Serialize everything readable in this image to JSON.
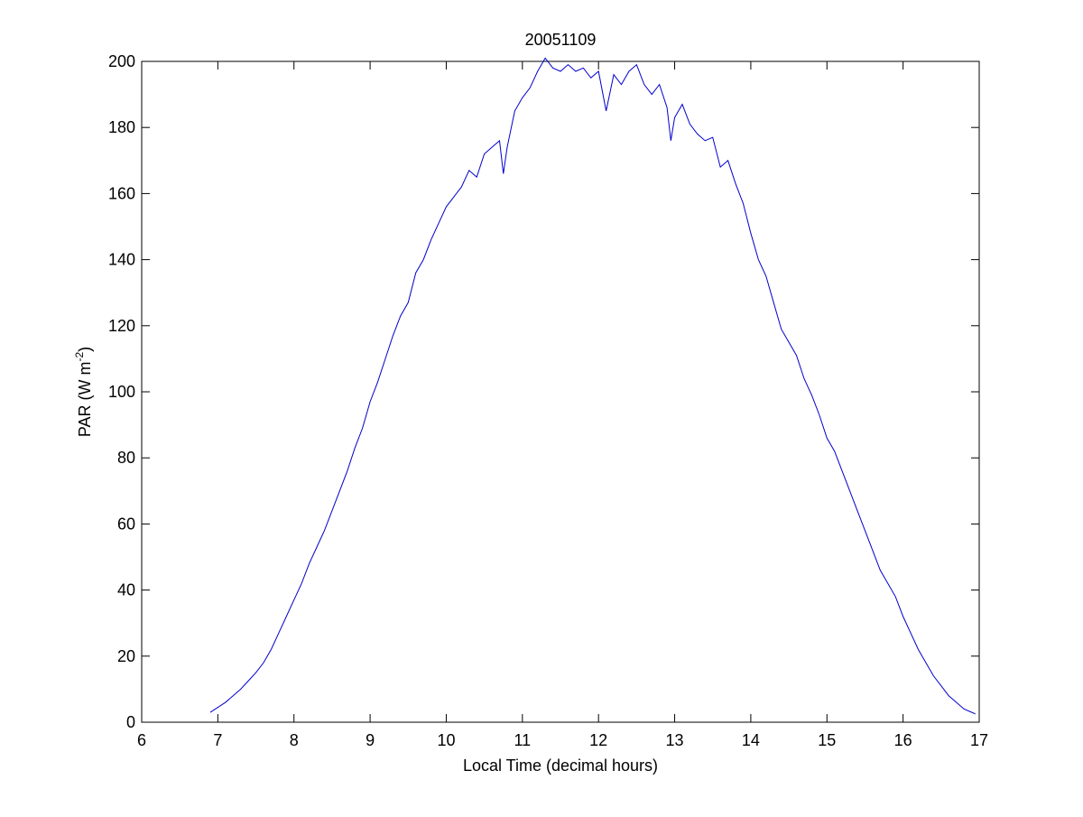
{
  "chart_data": {
    "type": "line",
    "title": "20051109",
    "xlabel": "Local Time (decimal hours)",
    "ylabel": {
      "text": "PAR (W m",
      "superscript": "-2",
      "suffix": ")"
    },
    "xlim": [
      6,
      17
    ],
    "xticks": [
      6,
      7,
      8,
      9,
      10,
      11,
      12,
      13,
      14,
      15,
      16,
      17
    ],
    "ylim": [
      0,
      200
    ],
    "yticks": [
      0,
      20,
      40,
      60,
      80,
      100,
      120,
      140,
      160,
      180,
      200
    ],
    "grid": false,
    "x": [
      6.9,
      7.0,
      7.1,
      7.2,
      7.3,
      7.4,
      7.5,
      7.6,
      7.7,
      7.8,
      7.9,
      8.0,
      8.1,
      8.2,
      8.3,
      8.4,
      8.5,
      8.6,
      8.7,
      8.8,
      8.9,
      9.0,
      9.1,
      9.2,
      9.3,
      9.4,
      9.5,
      9.6,
      9.7,
      9.8,
      9.9,
      10.0,
      10.1,
      10.2,
      10.3,
      10.4,
      10.5,
      10.6,
      10.7,
      10.75,
      10.8,
      10.9,
      11.0,
      11.1,
      11.2,
      11.3,
      11.4,
      11.5,
      11.6,
      11.7,
      11.8,
      11.9,
      12.0,
      12.1,
      12.2,
      12.3,
      12.4,
      12.5,
      12.6,
      12.7,
      12.8,
      12.9,
      12.95,
      13.0,
      13.1,
      13.2,
      13.3,
      13.4,
      13.5,
      13.6,
      13.7,
      13.8,
      13.9,
      14.0,
      14.1,
      14.2,
      14.3,
      14.4,
      14.5,
      14.6,
      14.7,
      14.8,
      14.9,
      15.0,
      15.1,
      15.2,
      15.3,
      15.4,
      15.5,
      15.6,
      15.7,
      15.8,
      15.9,
      16.0,
      16.1,
      16.2,
      16.3,
      16.4,
      16.5,
      16.6,
      16.7,
      16.8,
      16.9,
      16.95
    ],
    "series": [
      {
        "color": "#0000cc",
        "values": [
          3,
          4.5,
          6,
          8,
          10,
          12.5,
          15,
          18,
          22,
          27,
          32,
          37,
          42,
          48,
          53,
          58,
          64,
          70,
          76,
          83,
          89,
          97,
          103,
          110,
          117,
          123,
          127,
          136,
          140,
          146,
          151,
          156,
          159,
          162,
          167,
          165,
          172,
          174,
          176,
          166,
          174,
          185,
          189,
          192,
          197,
          201,
          198,
          197,
          199,
          197,
          198,
          195,
          197,
          185,
          196,
          193,
          197,
          199,
          193,
          190,
          193,
          186,
          176,
          183,
          187,
          181,
          178,
          176,
          177,
          168,
          170,
          163,
          157,
          148,
          140,
          135,
          127,
          119,
          115,
          111,
          104,
          99,
          93,
          86,
          82,
          76,
          70,
          64,
          58,
          52,
          46,
          42,
          38,
          32,
          27,
          22,
          18,
          14,
          11,
          8,
          6,
          4,
          3,
          2.5
        ]
      }
    ]
  }
}
